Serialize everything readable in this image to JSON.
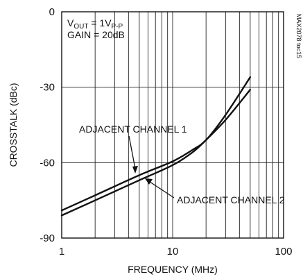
{
  "chart_data": {
    "type": "line",
    "xlabel": "FREQUENCY (MHz)",
    "ylabel": "CROSSTALK (dBc)",
    "xscale": "log",
    "xlim": [
      1,
      100
    ],
    "ylim": [
      -90,
      0
    ],
    "xticks": [
      1,
      10,
      100
    ],
    "xtick_labels": [
      "1",
      "10",
      "100"
    ],
    "yticks": [
      0,
      -30,
      -60,
      -90
    ],
    "ytick_labels": [
      "0",
      "-30",
      "-60",
      "-90"
    ],
    "grid": true,
    "conditions": {
      "vout_prefix": "V",
      "vout_sub": "OUT",
      "vout_mid": " = 1V",
      "vout_unit_sub": "P-P",
      "gain": "GAIN = 20dB"
    },
    "figure_id": "MAX2078 toc15",
    "series": [
      {
        "name": "ADJACENT CHANNEL 1",
        "x": [
          1,
          2,
          5,
          10,
          15,
          20,
          30,
          50
        ],
        "y": [
          -79,
          -73,
          -65,
          -59.5,
          -55,
          -51,
          -41,
          -26
        ]
      },
      {
        "name": "ADJACENT CHANNEL 2",
        "x": [
          1,
          2,
          5,
          10,
          15,
          20,
          30,
          50
        ],
        "y": [
          -81,
          -75,
          -67,
          -61,
          -56,
          -51,
          -43,
          -31
        ]
      }
    ]
  }
}
